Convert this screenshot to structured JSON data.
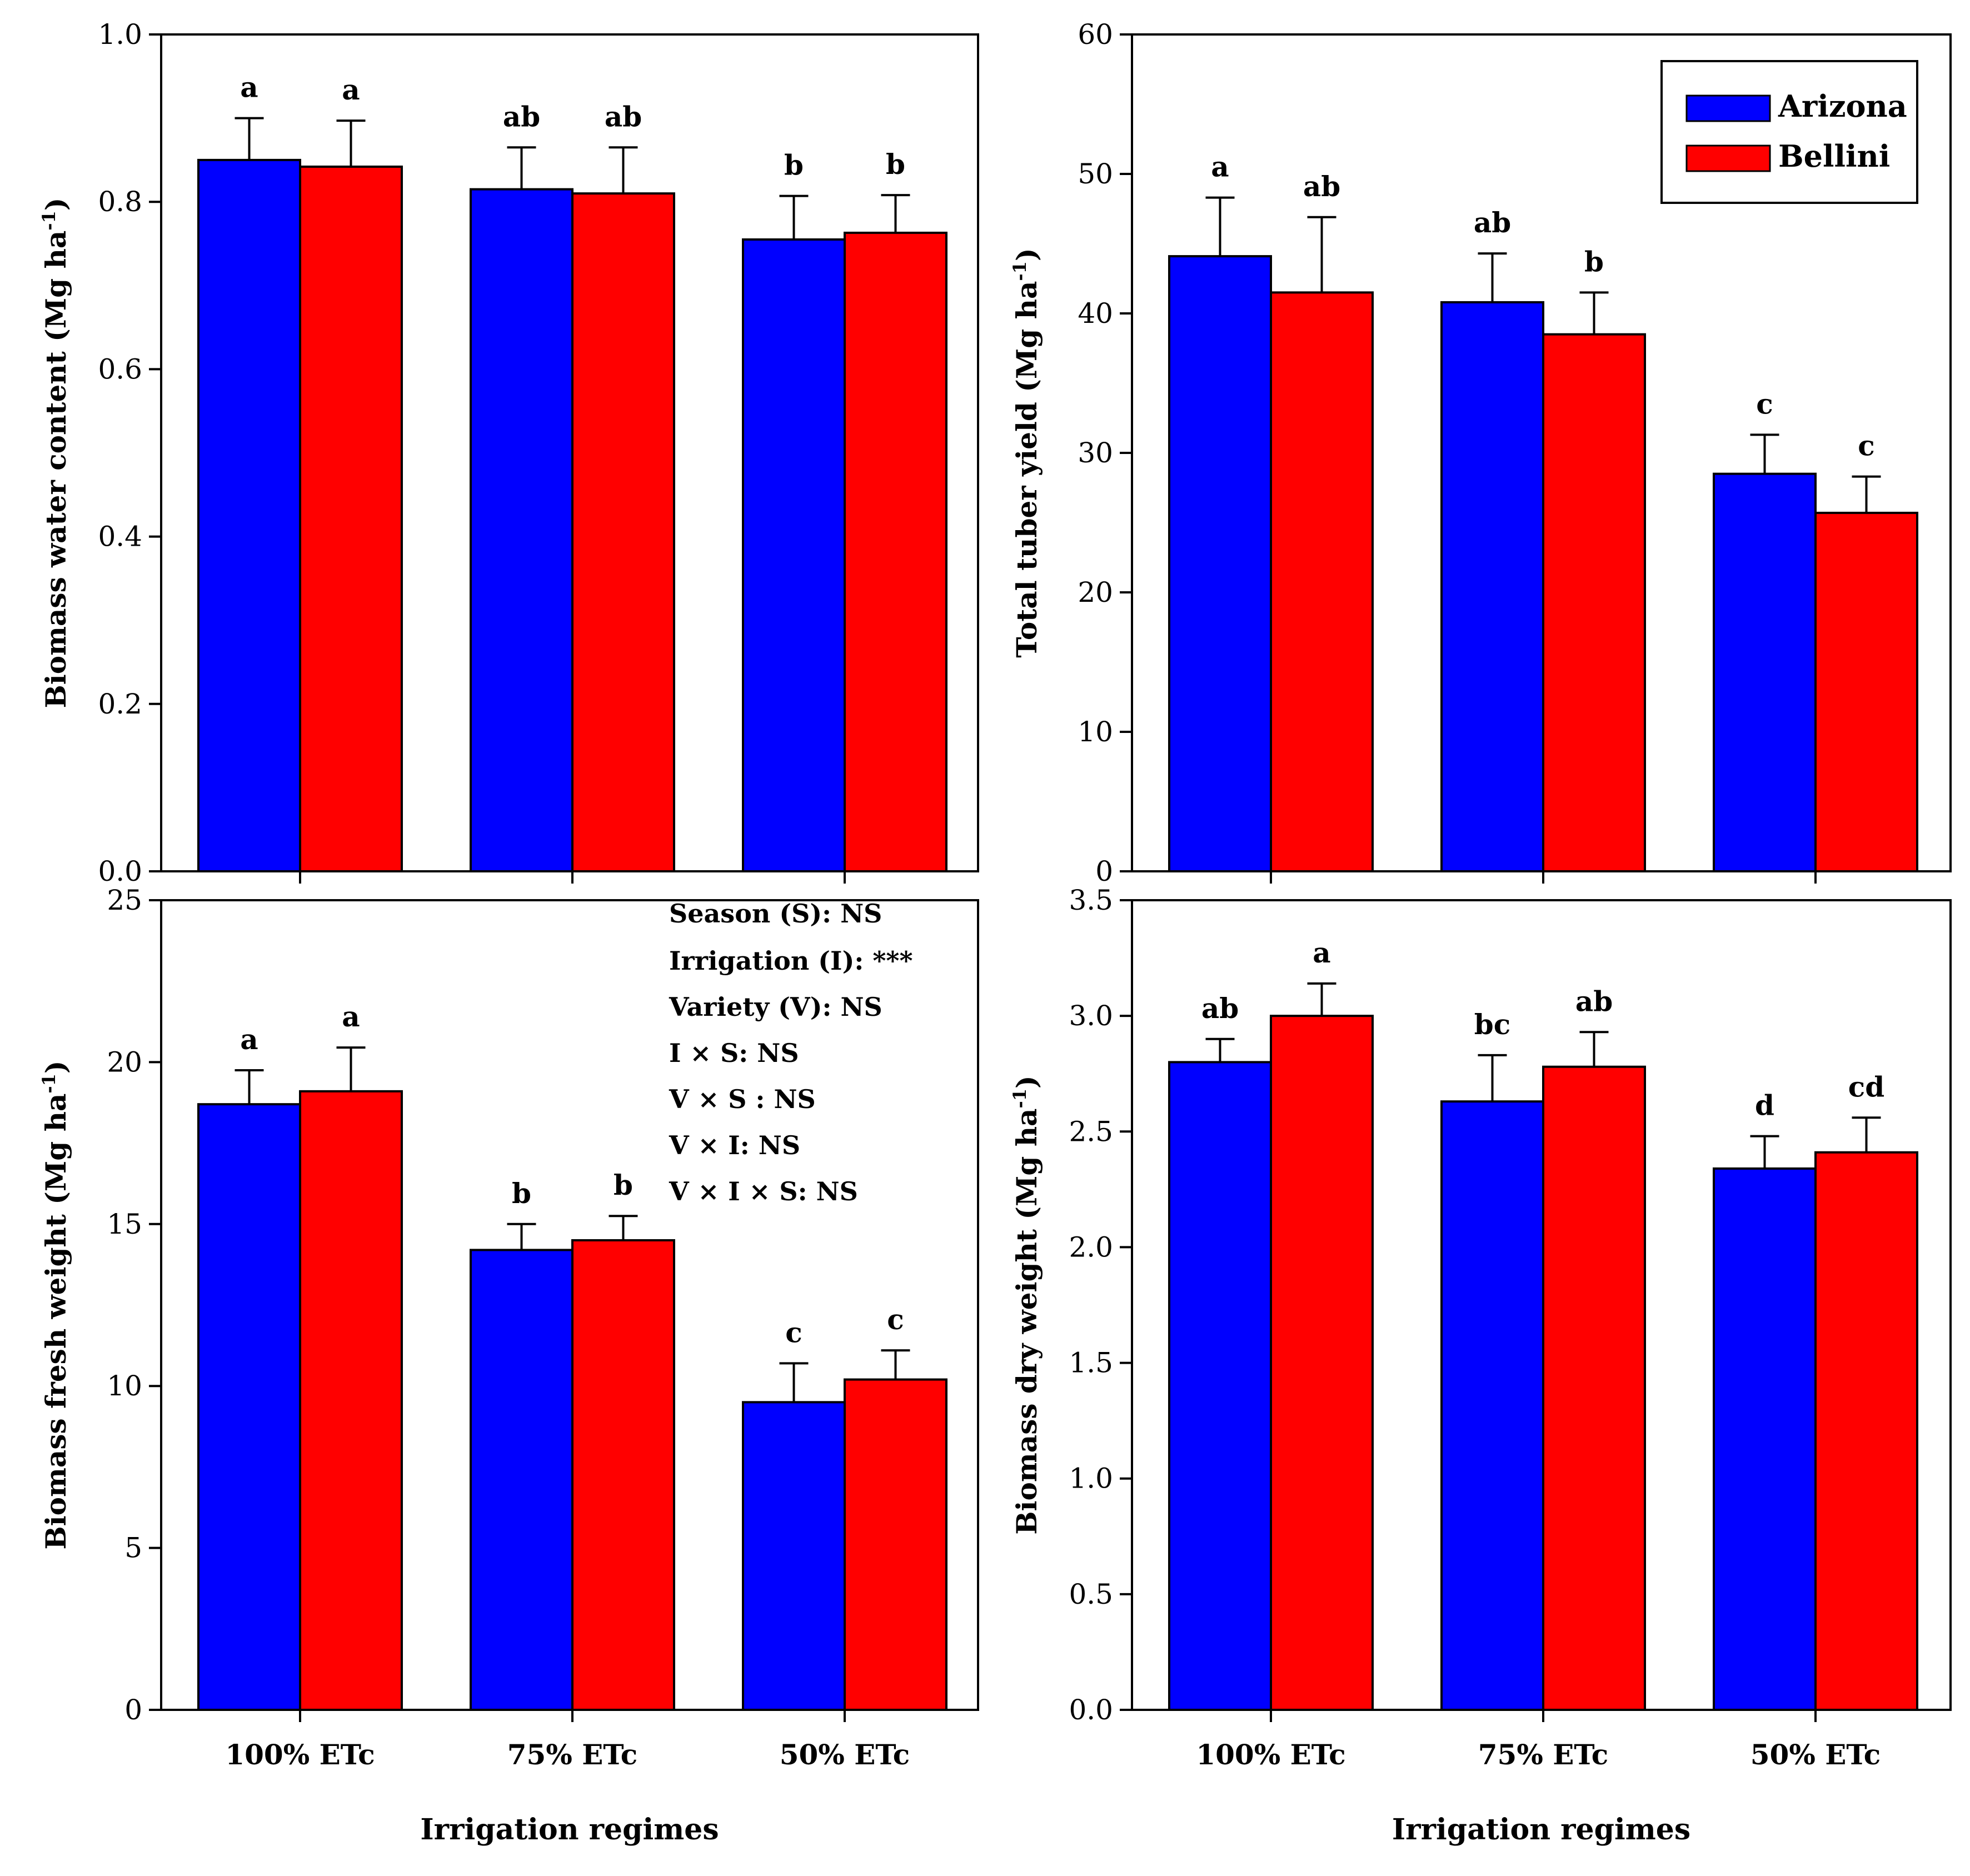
{
  "colors": {
    "arizona": "#0000ff",
    "bellini": "#ff0000",
    "axis": "#000000"
  },
  "legend": {
    "placement": "top-right",
    "items": [
      {
        "label": "Arizona",
        "color": "#0000ff"
      },
      {
        "label": "Bellini",
        "color": "#ff0000"
      }
    ]
  },
  "stats": {
    "lines": [
      "Season (S):   NS",
      "Irrigation (I): ***",
      "Variety (V): NS",
      "I × S:  NS",
      "V × S : NS",
      "V × I: NS",
      "V × I × S: NS"
    ]
  },
  "chart_data": [
    {
      "type": "bar",
      "panel": "top-left",
      "categories": [
        "100% ETc",
        "75% ETc",
        "50% ETc"
      ],
      "ylabel": "Biomass water content (Mg ha",
      "ylabel_sup": "-1",
      "ylabel_close": ")",
      "xlabel": "",
      "ylim": [
        0,
        1.0
      ],
      "yticks": [
        0.0,
        0.2,
        0.4,
        0.6,
        0.8,
        1.0
      ],
      "ytick_labels": [
        "0.0",
        "0.2",
        "0.4",
        "0.6",
        "0.8",
        "1.0"
      ],
      "series": [
        {
          "name": "Arizona",
          "values": [
            0.85,
            0.815,
            0.755
          ],
          "errors": [
            0.05,
            0.05,
            0.052
          ],
          "letters": [
            "a",
            "ab",
            "b"
          ]
        },
        {
          "name": "Bellini",
          "values": [
            0.842,
            0.81,
            0.763
          ],
          "errors": [
            0.055,
            0.055,
            0.045
          ],
          "letters": [
            "a",
            "ab",
            "b"
          ]
        }
      ]
    },
    {
      "type": "bar",
      "panel": "top-right",
      "categories": [
        "100% ETc",
        "75% ETc",
        "50% ETc"
      ],
      "ylabel": "Total tuber yield (Mg ha",
      "ylabel_sup": "-1",
      "ylabel_close": ")",
      "xlabel": "",
      "ylim": [
        0,
        60
      ],
      "yticks": [
        0,
        10,
        20,
        30,
        40,
        50,
        60
      ],
      "ytick_labels": [
        "0",
        "10",
        "20",
        "30",
        "40",
        "50",
        "60"
      ],
      "series": [
        {
          "name": "Arizona",
          "values": [
            44.1,
            40.8,
            28.5
          ],
          "errors": [
            4.2,
            3.5,
            2.8
          ],
          "letters": [
            "a",
            "ab",
            "c"
          ]
        },
        {
          "name": "Bellini",
          "values": [
            41.5,
            38.5,
            25.7
          ],
          "errors": [
            5.4,
            3.0,
            2.6
          ],
          "letters": [
            "ab",
            "b",
            "c"
          ]
        }
      ]
    },
    {
      "type": "bar",
      "panel": "bottom-left",
      "categories": [
        "100% ETc",
        "75% ETc",
        "50% ETc"
      ],
      "ylabel": "Biomass fresh weight (Mg ha",
      "ylabel_sup": "-1",
      "ylabel_close": ")",
      "xlabel": "Irrigation regimes",
      "ylim": [
        0,
        25
      ],
      "yticks": [
        0,
        5,
        10,
        15,
        20,
        25
      ],
      "ytick_labels": [
        "0",
        "5",
        "10",
        "15",
        "20",
        "25"
      ],
      "series": [
        {
          "name": "Arizona",
          "values": [
            18.7,
            14.2,
            9.5
          ],
          "errors": [
            1.05,
            0.8,
            1.2
          ],
          "letters": [
            "a",
            "b",
            "c"
          ]
        },
        {
          "name": "Bellini",
          "values": [
            19.1,
            14.5,
            10.2
          ],
          "errors": [
            1.35,
            0.75,
            0.9
          ],
          "letters": [
            "a",
            "b",
            "c"
          ]
        }
      ]
    },
    {
      "type": "bar",
      "panel": "bottom-right",
      "categories": [
        "100% ETc",
        "75% ETc",
        "50% ETc"
      ],
      "ylabel": "Biomass dry weight (Mg ha",
      "ylabel_sup": "-1",
      "ylabel_close": ")",
      "xlabel": "Irrigation regimes",
      "ylim": [
        0,
        3.5
      ],
      "yticks": [
        0.0,
        0.5,
        1.0,
        1.5,
        2.0,
        2.5,
        3.0,
        3.5
      ],
      "ytick_labels": [
        "0.0",
        "0.5",
        "1.0",
        "1.5",
        "2.0",
        "2.5",
        "3.0",
        "3.5"
      ],
      "series": [
        {
          "name": "Arizona",
          "values": [
            2.8,
            2.63,
            2.34
          ],
          "errors": [
            0.1,
            0.2,
            0.14
          ],
          "letters": [
            "ab",
            "bc",
            "d"
          ]
        },
        {
          "name": "Bellini",
          "values": [
            3.0,
            2.78,
            2.41
          ],
          "errors": [
            0.14,
            0.15,
            0.15
          ],
          "letters": [
            "a",
            "ab",
            "cd"
          ]
        }
      ]
    }
  ]
}
